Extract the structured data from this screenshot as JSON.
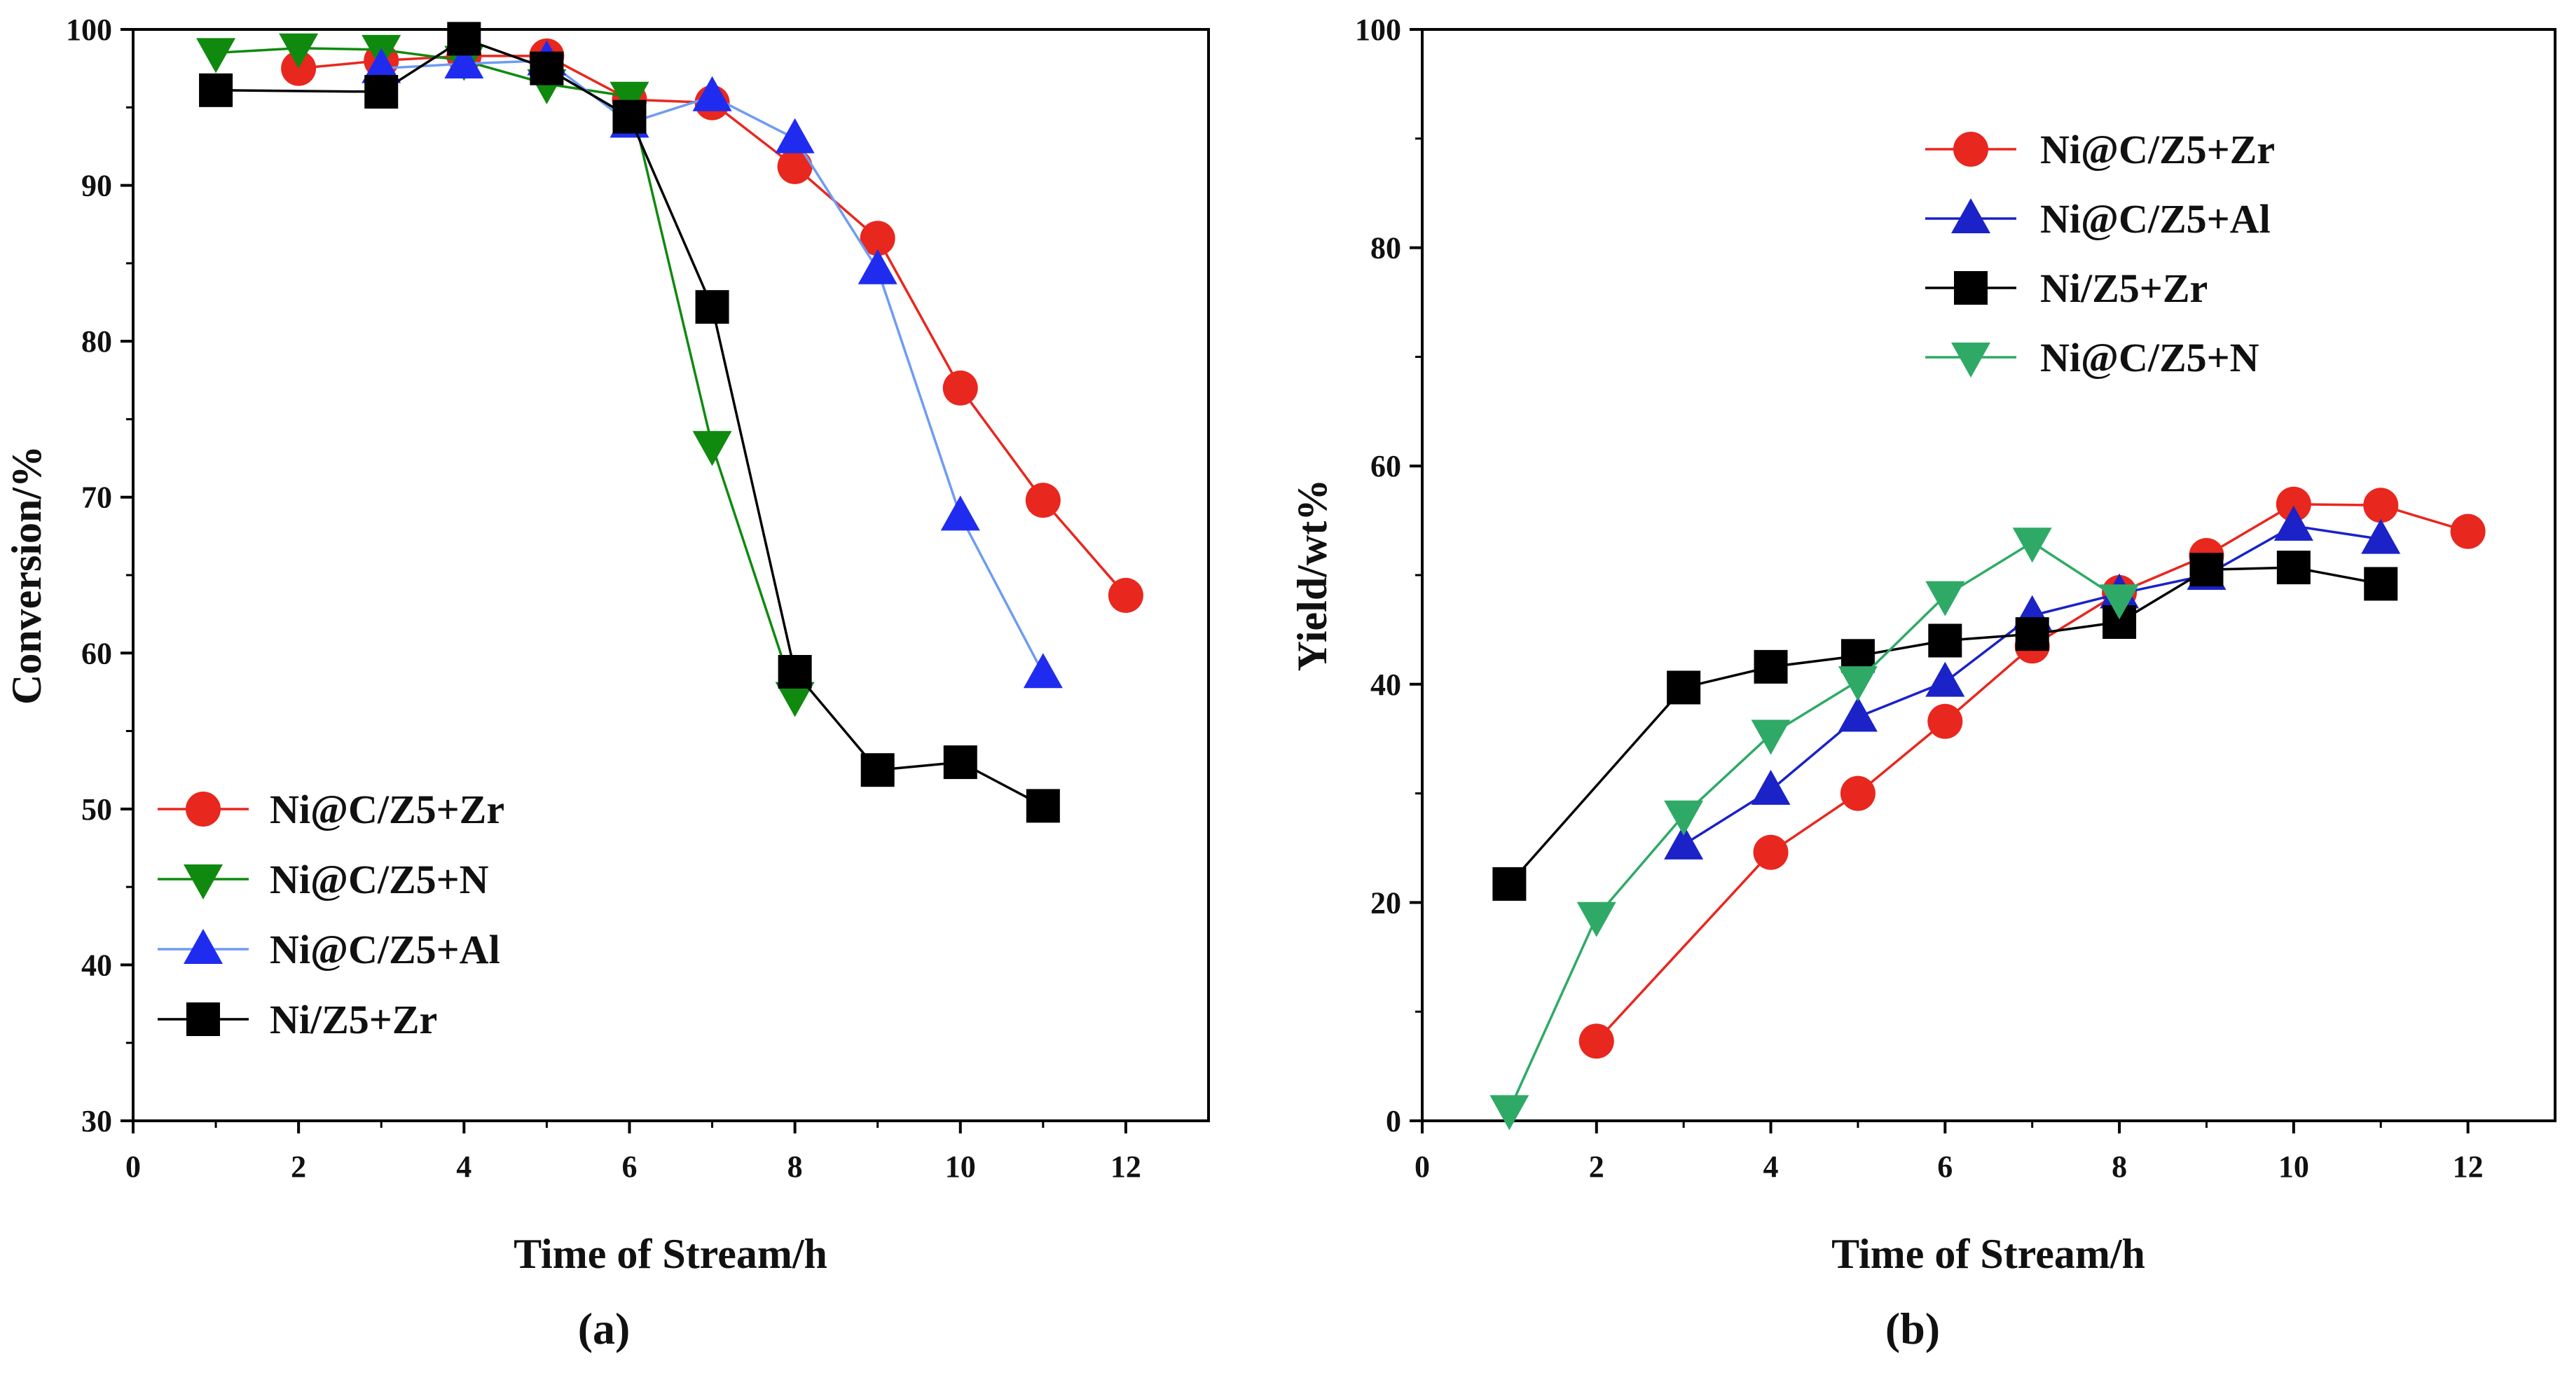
{
  "chart_data": [
    {
      "id": "a",
      "type": "line",
      "panel_label": "(a)",
      "xlabel": "Time of Stream/h",
      "ylabel": "Conversion/%",
      "xlim": [
        0,
        13
      ],
      "ylim": [
        30,
        100
      ],
      "xticks": [
        "0",
        "2",
        "4",
        "6",
        "8",
        "10",
        "12"
      ],
      "yticks": [
        "30",
        "40",
        "50",
        "60",
        "70",
        "80",
        "90",
        "100"
      ],
      "legend_position": "bottom-left",
      "series": [
        {
          "name": "Ni@C/Z5+Zr",
          "color": "#e8271e",
          "marker": "circle",
          "x": [
            2,
            3,
            4,
            5,
            6,
            7,
            8,
            9,
            10,
            11,
            12
          ],
          "y": [
            97.5,
            98.0,
            98.3,
            98.3,
            95.5,
            95.3,
            91.2,
            86.6,
            77.0,
            69.8,
            63.7
          ]
        },
        {
          "name": "Ni@C/Z5+N",
          "color": "#0f8a0f",
          "marker": "triangle-down",
          "x": [
            1,
            2,
            3,
            4,
            5,
            6,
            7,
            8
          ],
          "y": [
            98.5,
            98.8,
            98.7,
            98.0,
            96.5,
            95.7,
            73.3,
            57.2
          ]
        },
        {
          "name": "Ni@C/Z5+Al",
          "color": "#1f2cf0",
          "line_color": "#6e9cf2",
          "marker": "triangle-up",
          "x": [
            3,
            4,
            5,
            6,
            7,
            8,
            9,
            10,
            11
          ],
          "y": [
            97.5,
            97.8,
            98.0,
            94.0,
            95.7,
            93.0,
            84.6,
            68.8,
            58.7
          ]
        },
        {
          "name": "Ni/Z5+Zr",
          "color": "#000000",
          "marker": "square",
          "x": [
            1,
            3,
            4,
            5,
            6,
            7,
            8,
            9,
            10,
            11
          ],
          "y": [
            96.1,
            96.0,
            99.4,
            97.5,
            94.4,
            82.2,
            58.8,
            52.5,
            53.0,
            50.2
          ]
        }
      ]
    },
    {
      "id": "b",
      "type": "line",
      "panel_label": "(b)",
      "xlabel": "Time of Stream/h",
      "ylabel": "Yield/wt%",
      "xlim": [
        0,
        13
      ],
      "ylim": [
        0,
        100
      ],
      "xticks": [
        "0",
        "2",
        "4",
        "6",
        "8",
        "10",
        "12"
      ],
      "yticks": [
        "0",
        "20",
        "40",
        "60",
        "80",
        "100"
      ],
      "legend_position": "top-right",
      "series": [
        {
          "name": "Ni@C/Z5+Zr",
          "color": "#e8271e",
          "marker": "circle",
          "x": [
            2,
            4,
            5,
            6,
            7,
            8,
            9,
            10,
            11,
            12
          ],
          "y": [
            7.3,
            24.6,
            30.0,
            36.6,
            43.5,
            48.4,
            51.8,
            56.5,
            56.4,
            54.0
          ]
        },
        {
          "name": "Ni@C/Z5+Al",
          "color": "#1a22c8",
          "marker": "triangle-up",
          "x": [
            3,
            4,
            5,
            6,
            7,
            8,
            9,
            10,
            11
          ],
          "y": [
            25.3,
            30.3,
            37.0,
            40.2,
            46.3,
            48.3,
            50.0,
            54.5,
            53.3
          ]
        },
        {
          "name": "Ni/Z5+Zr",
          "color": "#000000",
          "marker": "square",
          "x": [
            1,
            3,
            4,
            5,
            6,
            7,
            8,
            9,
            10,
            11
          ],
          "y": [
            21.7,
            39.7,
            41.6,
            42.6,
            44.0,
            44.6,
            45.7,
            50.5,
            50.7,
            49.2
          ]
        },
        {
          "name": "Ni@C/Z5+N",
          "color": "#2faa66",
          "marker": "triangle-down",
          "x": [
            1,
            2,
            3,
            4,
            5,
            6,
            7,
            8
          ],
          "y": [
            1.0,
            18.7,
            28.0,
            35.4,
            40.3,
            48.1,
            53.0,
            47.8
          ]
        }
      ]
    }
  ]
}
